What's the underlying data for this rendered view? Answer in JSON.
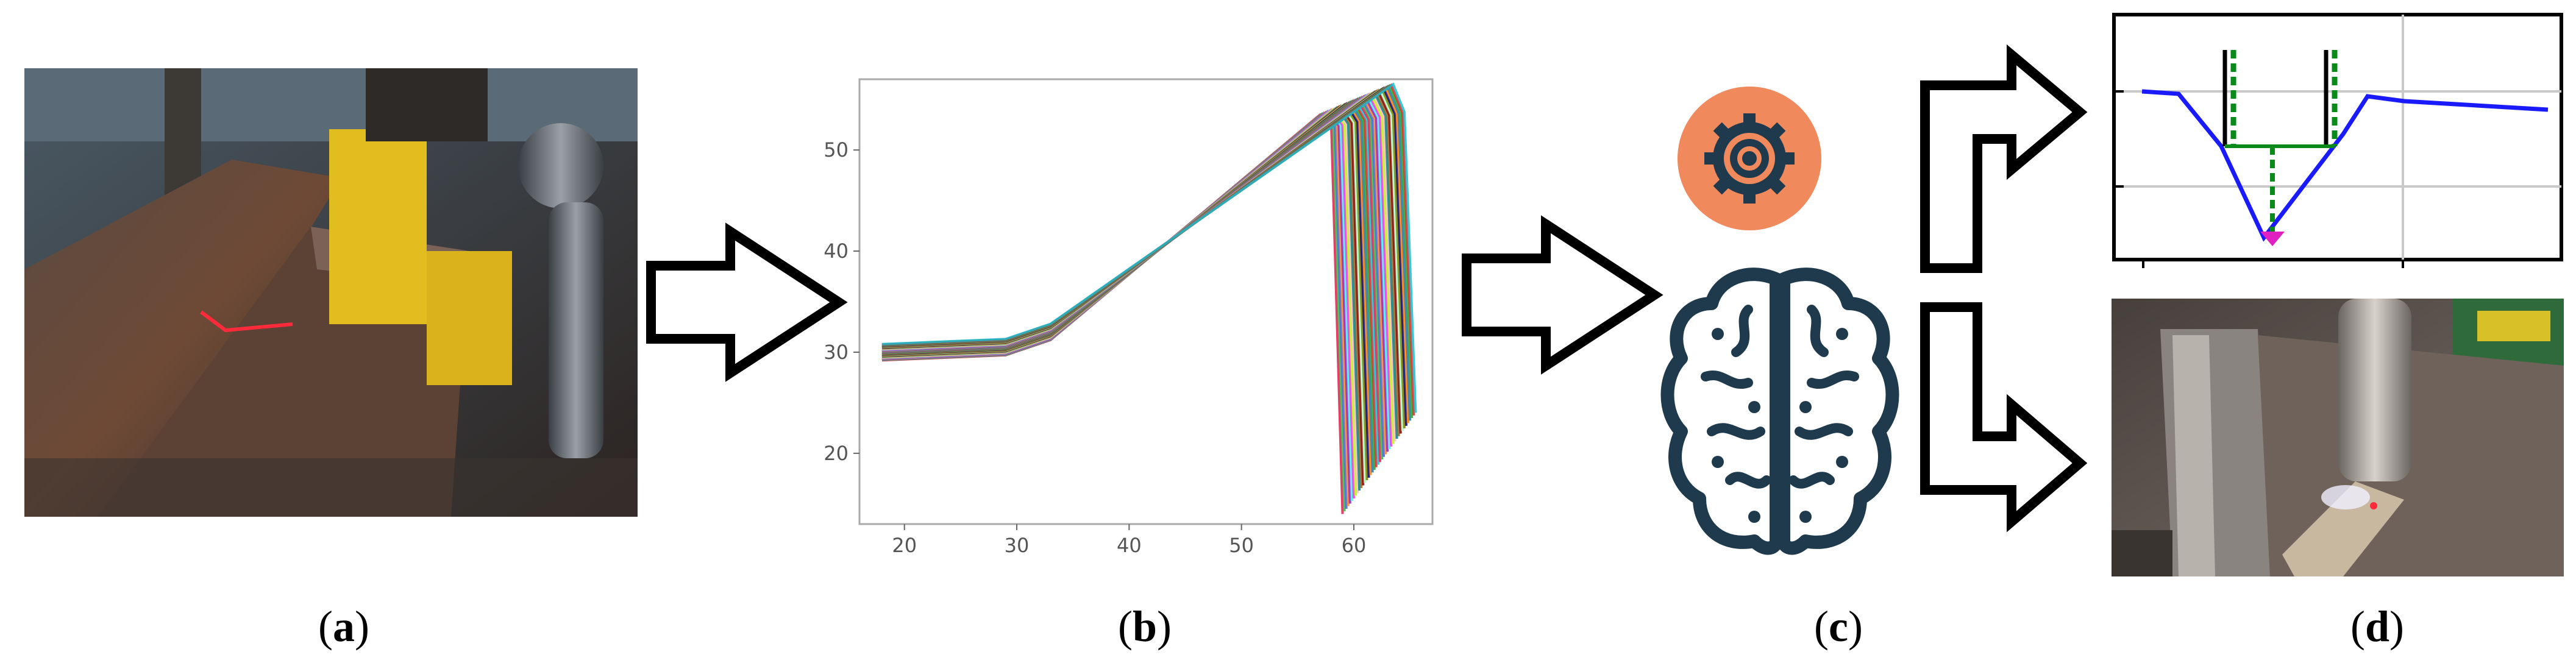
{
  "panels": [
    {
      "id": "a",
      "open": "(",
      "letter": "a",
      "close": ")"
    },
    {
      "id": "b",
      "open": "(",
      "letter": "b",
      "close": ")"
    },
    {
      "id": "c",
      "open": "(",
      "letter": "c",
      "close": ")"
    },
    {
      "id": "d",
      "open": "(",
      "letter": "d",
      "close": ")"
    }
  ],
  "chart_data": {
    "type": "line",
    "title": "",
    "xlabel": "",
    "ylabel": "",
    "xlim": [
      16,
      67
    ],
    "ylim": [
      13,
      57
    ],
    "xticks": [
      20,
      30,
      40,
      50,
      60
    ],
    "yticks": [
      20,
      30,
      40,
      50
    ],
    "grid": false,
    "series_count": 40,
    "profile_shape": {
      "x": [
        18,
        29,
        33,
        57,
        58,
        59
      ],
      "y": [
        30,
        30.5,
        32,
        55,
        53,
        15
      ]
    }
  },
  "colors": {
    "arrow_outline": "#000000",
    "gear_bg": "#f08a5d",
    "gear_fg": "#1f3a4d",
    "brain": "#1f3a4d",
    "profile_line": "#1a1aff",
    "weld_bead": "#e020c0",
    "dashed_green": "#0a8a1a",
    "solid_green": "#0a8a1a"
  },
  "icons": [
    "arrow-right-icon",
    "gear-icon",
    "brain-icon",
    "arrow-up-right-icon",
    "arrow-down-right-icon"
  ]
}
